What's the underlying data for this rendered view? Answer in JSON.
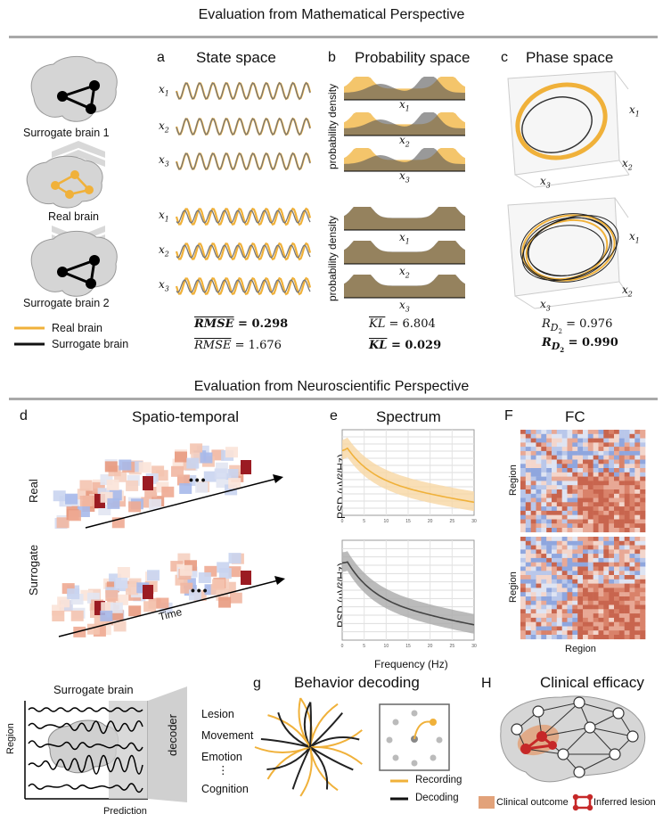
{
  "sections": {
    "math_title": "Evaluation from Mathematical Perspective",
    "neuro_title": "Evaluation from Neuroscientific Perspective"
  },
  "left_column": {
    "surrogate1": "Surrogate brain 1",
    "real": "Real brain",
    "surrogate2": "Surrogate brain 2",
    "legend_real": "Real brain",
    "legend_surrogate": "Surrogate brain"
  },
  "panels": {
    "a": {
      "letter": "a",
      "title": "State space",
      "var1": "x",
      "sub1": "1",
      "var2": "x",
      "sub2": "2",
      "var3": "x",
      "sub3": "3",
      "metric1_label": "RMSE",
      "metric1_value": "= 0.298",
      "metric2_label": "RMSE",
      "metric2_value": "= 1.676"
    },
    "b": {
      "letter": "b",
      "title": "Probability space",
      "ylabel": "probability density",
      "metric1_label": "KL",
      "metric1_value": "= 6.804",
      "metric2_label": "KL",
      "metric2_value": "= 0.029"
    },
    "c": {
      "letter": "c",
      "title": "Phase space",
      "metric1_label": "R",
      "metric1_sub": "D",
      "metric1_subsub": "2",
      "metric1_value": "= 0.976",
      "metric2_label": "R",
      "metric2_sub": "D",
      "metric2_subsub": "2",
      "metric2_value": "= 0.990"
    },
    "d": {
      "letter": "d",
      "title": "Spatio-temporal",
      "row1": "Real",
      "row2": "Surrogate",
      "time": "Time",
      "dots": "• • •"
    },
    "e": {
      "letter": "e",
      "title": "Spectrum",
      "ylabel": "PSD (μV²/Hz)",
      "xlabel": "Frequency (Hz)",
      "ticks": [
        "0",
        "5",
        "10",
        "15",
        "20",
        "25",
        "30"
      ]
    },
    "f": {
      "letter": "F",
      "title": "FC",
      "ylabel": "Region",
      "xlabel": "Region"
    },
    "decoder": {
      "title": "Surrogate brain",
      "ylabel": "Region",
      "xlabel": "Prediction",
      "decoder": "decoder",
      "outputs": [
        "Lesion",
        "Movement",
        "Emotion",
        "⋮",
        "Cognition"
      ]
    },
    "g": {
      "letter": "g",
      "title": "Behavior decoding",
      "legend_recording": "Recording",
      "legend_decoding": "Decoding"
    },
    "h": {
      "letter": "H",
      "title": "Clinical efficacy",
      "legend_outcome": "Clinical outcome",
      "legend_lesion": "Inferred lesion"
    }
  },
  "colors": {
    "real": "#f0b13a",
    "surrogate": "#222222",
    "divider": "#a9a9a9",
    "lesion": "#c62828"
  }
}
